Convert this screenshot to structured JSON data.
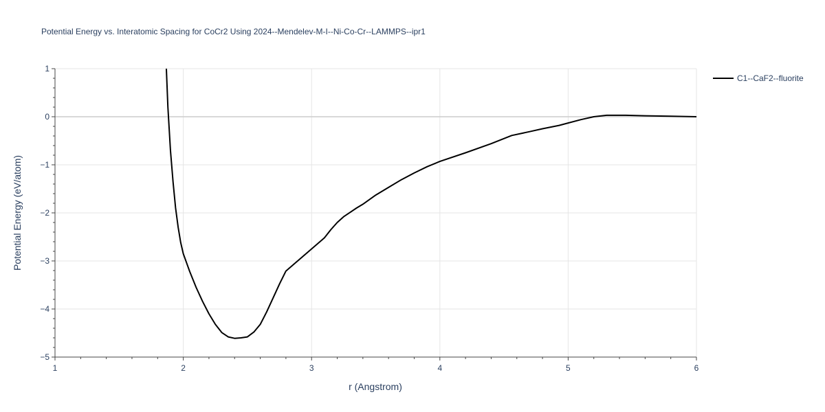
{
  "chart_data": {
    "type": "line",
    "title": "Potential Energy vs. Interatomic Spacing for CoCr2 Using 2024--Mendelev-M-I--Ni-Co-Cr--LAMMPS--ipr1",
    "xlabel": "r (Angstrom)",
    "ylabel": "Potential Energy (eV/atom)",
    "xlim": [
      1,
      6
    ],
    "ylim": [
      -5,
      1
    ],
    "xticks": [
      1,
      2,
      3,
      4,
      5,
      6
    ],
    "xtick_labels": [
      "1",
      "2",
      "3",
      "4",
      "5",
      "6"
    ],
    "yticks": [
      1,
      0,
      -1,
      -2,
      -3,
      -4,
      -5
    ],
    "ytick_labels": [
      "1",
      "0",
      "−1",
      "−2",
      "−3",
      "−4",
      "−5"
    ],
    "grid": true,
    "legend_position": "top-right",
    "series": [
      {
        "name": "C1--CaF2--fluorite",
        "color": "#000000",
        "x": [
          1.868,
          1.88,
          1.9,
          1.92,
          1.94,
          1.96,
          1.98,
          2.0,
          2.05,
          2.1,
          2.15,
          2.2,
          2.25,
          2.3,
          2.35,
          2.4,
          2.45,
          2.5,
          2.55,
          2.6,
          2.65,
          2.7,
          2.75,
          2.8,
          2.9,
          3.0,
          3.1,
          3.15,
          3.2,
          3.25,
          3.3,
          3.35,
          3.4,
          3.5,
          3.6,
          3.7,
          3.8,
          3.9,
          4.0,
          4.2,
          4.4,
          4.56,
          4.7,
          4.8,
          4.93,
          5.0,
          5.1,
          5.2,
          5.3,
          5.45,
          5.6,
          5.8,
          6.0
        ],
        "y": [
          1.0,
          0.2,
          -0.7,
          -1.35,
          -1.9,
          -2.3,
          -2.62,
          -2.85,
          -3.22,
          -3.55,
          -3.84,
          -4.1,
          -4.32,
          -4.49,
          -4.58,
          -4.61,
          -4.6,
          -4.58,
          -4.48,
          -4.32,
          -4.06,
          -3.77,
          -3.48,
          -3.21,
          -2.98,
          -2.75,
          -2.52,
          -2.35,
          -2.2,
          -2.08,
          -1.99,
          -1.9,
          -1.82,
          -1.63,
          -1.47,
          -1.31,
          -1.17,
          -1.04,
          -0.93,
          -0.75,
          -0.56,
          -0.39,
          -0.31,
          -0.25,
          -0.18,
          -0.13,
          -0.06,
          0.0,
          0.03,
          0.03,
          0.02,
          0.01,
          0.0
        ]
      }
    ]
  }
}
